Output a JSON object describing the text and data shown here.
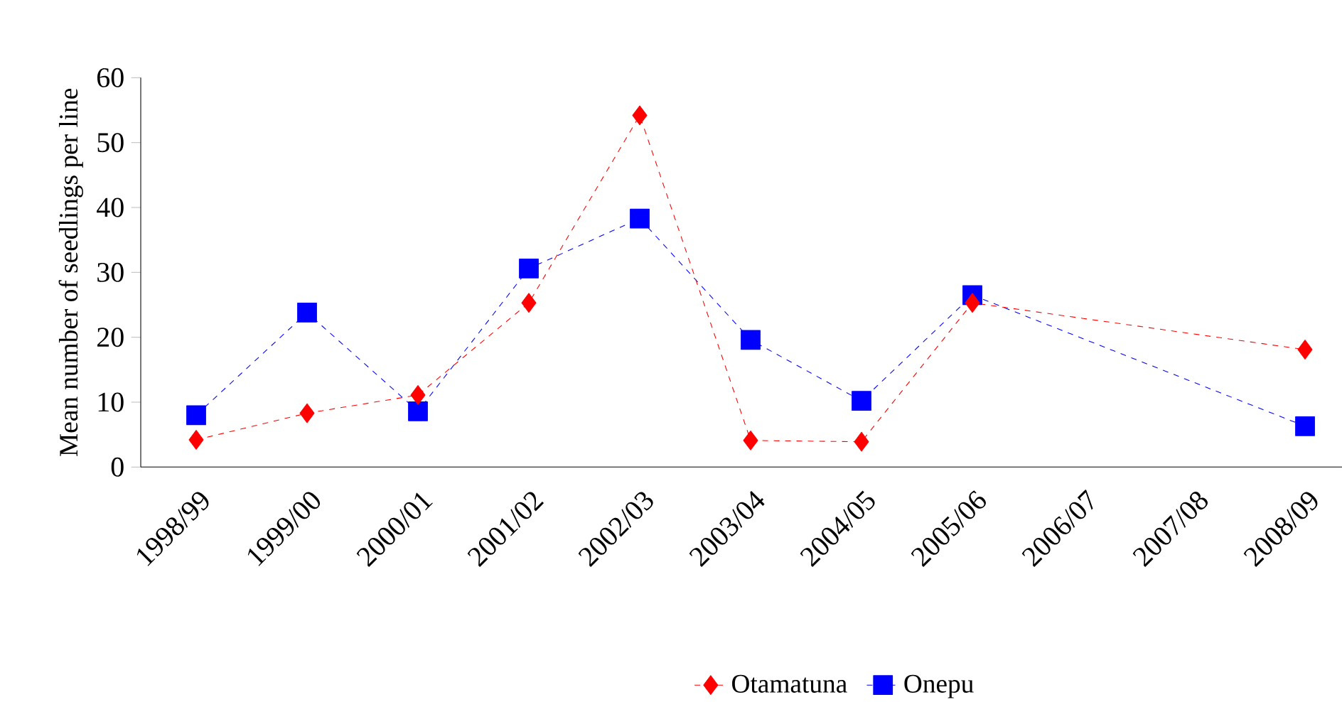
{
  "chart_data": {
    "type": "line",
    "ylabel": "Mean number of seedlings per line",
    "categories": [
      "1998/99",
      "1999/00",
      "2000/01",
      "2001/02",
      "2002/03",
      "2003/04",
      "2004/05",
      "2005/06",
      "2006/07",
      "2007/08",
      "2008/09"
    ],
    "series": [
      {
        "name": "Otamatuna",
        "color": "#ff0000",
        "marker": "diamond",
        "values": [
          4.2,
          8.3,
          11.1,
          25.3,
          54.2,
          4.1,
          3.9,
          25.3,
          null,
          null,
          18.1
        ]
      },
      {
        "name": "Onepu",
        "color": "#0000ff",
        "marker": "square",
        "values": [
          8.0,
          23.8,
          8.6,
          30.6,
          38.3,
          19.6,
          10.2,
          26.5,
          null,
          null,
          6.3
        ]
      }
    ],
    "ylim": [
      0,
      60
    ],
    "yticks": [
      0,
      10,
      20,
      30,
      40,
      50,
      60
    ],
    "grid": false,
    "legend": "bottom",
    "line_style": "dashed"
  }
}
